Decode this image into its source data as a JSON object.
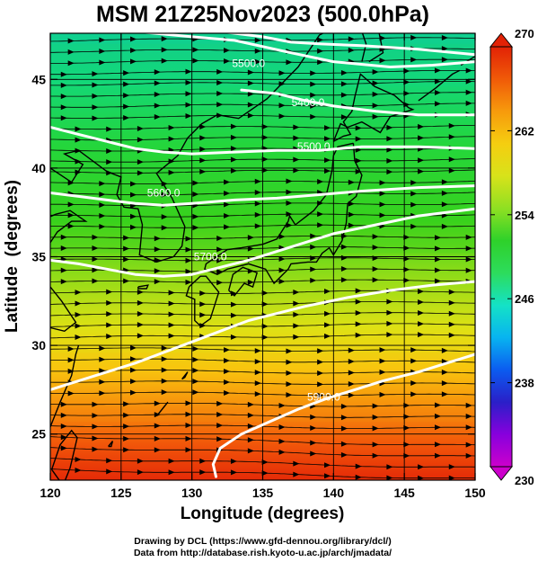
{
  "title": "MSM 21Z25Nov2023 (500.0hPa)",
  "map": {
    "xlabel": "Longitude (degrees)",
    "ylabel": "Latitude  (degrees)",
    "lon_range": [
      120,
      150
    ],
    "lat_range": [
      22.4,
      47.6
    ],
    "x_ticks": [
      120,
      125,
      130,
      135,
      140,
      145,
      150
    ],
    "y_ticks": [
      25,
      30,
      35,
      40,
      45
    ],
    "grid": true,
    "contour_labels": [
      {
        "text": "5500.0",
        "lon": 134.0,
        "lat": 45.7
      },
      {
        "text": "5400.0",
        "lon": 138.2,
        "lat": 43.5
      },
      {
        "text": "5500.0",
        "lon": 138.6,
        "lat": 41.0
      },
      {
        "text": "5600.0",
        "lon": 128.0,
        "lat": 38.4
      },
      {
        "text": "5700.0",
        "lon": 131.3,
        "lat": 34.8
      },
      {
        "text": "5900.0",
        "lon": 139.3,
        "lat": 26.9
      }
    ],
    "contours": [
      [
        [
          122.0,
          47.9
        ],
        [
          126.0,
          47.7
        ],
        [
          130.0,
          47.4
        ],
        [
          133.0,
          47.2
        ],
        [
          137.0,
          46.5
        ],
        [
          140.0,
          46.0
        ],
        [
          144.0,
          45.7
        ],
        [
          147.0,
          45.8
        ],
        [
          150.0,
          46.0
        ]
      ],
      [
        [
          130.0,
          47.9
        ],
        [
          133.0,
          47.6
        ],
        [
          135.0,
          47.4
        ],
        [
          137.0,
          47.1
        ],
        [
          139.0,
          47.0
        ],
        [
          142.0,
          46.9
        ],
        [
          146.0,
          46.7
        ],
        [
          150.0,
          46.4
        ]
      ],
      [
        [
          133.5,
          44.4
        ],
        [
          136.0,
          44.2
        ],
        [
          138.0,
          43.8
        ],
        [
          140.0,
          43.5
        ],
        [
          143.0,
          43.2
        ],
        [
          146.0,
          43.0
        ],
        [
          150.0,
          43.0
        ]
      ],
      [
        [
          120.0,
          42.3
        ],
        [
          122.0,
          41.9
        ],
        [
          124.0,
          41.5
        ],
        [
          126.0,
          41.1
        ],
        [
          128.0,
          40.9
        ],
        [
          130.0,
          40.8
        ],
        [
          133.0,
          40.9
        ],
        [
          136.0,
          41.0
        ],
        [
          139.0,
          41.0
        ],
        [
          142.0,
          41.2
        ],
        [
          146.0,
          41.2
        ],
        [
          150.0,
          41.1
        ]
      ],
      [
        [
          120.0,
          38.6
        ],
        [
          122.0,
          38.4
        ],
        [
          124.0,
          38.2
        ],
        [
          126.0,
          38.0
        ],
        [
          128.0,
          37.9
        ],
        [
          130.0,
          38.0
        ],
        [
          133.0,
          38.2
        ],
        [
          136.0,
          38.3
        ],
        [
          139.0,
          38.5
        ],
        [
          142.0,
          38.7
        ],
        [
          146.0,
          38.9
        ],
        [
          150.0,
          39.0
        ]
      ],
      [
        [
          120.0,
          34.8
        ],
        [
          122.0,
          34.6
        ],
        [
          124.0,
          34.3
        ],
        [
          126.0,
          34.0
        ],
        [
          128.0,
          33.9
        ],
        [
          130.0,
          34.0
        ],
        [
          132.0,
          34.4
        ],
        [
          134.0,
          34.8
        ],
        [
          136.0,
          35.3
        ],
        [
          138.0,
          35.8
        ],
        [
          140.0,
          36.3
        ],
        [
          143.0,
          36.8
        ],
        [
          146.0,
          37.3
        ],
        [
          150.0,
          37.7
        ]
      ],
      [
        [
          120.0,
          27.5
        ],
        [
          122.0,
          28.0
        ],
        [
          124.0,
          28.5
        ],
        [
          126.0,
          29.0
        ],
        [
          128.0,
          29.6
        ],
        [
          130.0,
          30.2
        ],
        [
          132.0,
          30.8
        ],
        [
          134.0,
          31.4
        ],
        [
          136.0,
          31.8
        ],
        [
          138.0,
          32.2
        ],
        [
          141.0,
          32.7
        ],
        [
          144.0,
          33.1
        ],
        [
          147.0,
          33.4
        ],
        [
          150.0,
          33.6
        ]
      ],
      [
        [
          131.7,
          22.6
        ],
        [
          131.5,
          23.3
        ],
        [
          132.0,
          24.2
        ],
        [
          133.5,
          25.0
        ],
        [
          135.5,
          25.7
        ],
        [
          137.5,
          26.4
        ],
        [
          139.5,
          27.0
        ],
        [
          141.5,
          27.5
        ],
        [
          143.5,
          28.0
        ],
        [
          146.0,
          28.5
        ],
        [
          148.0,
          29.0
        ],
        [
          150.0,
          29.5
        ]
      ]
    ]
  },
  "colorbar": {
    "min": 230,
    "max": 270,
    "ticks": [
      270,
      262,
      254,
      246,
      238,
      230
    ],
    "colors": [
      "#cc00cc",
      "#8800dd",
      "#2a1fc8",
      "#0b5cf0",
      "#08b4f0",
      "#14e2c6",
      "#2ddc5c",
      "#2ed12a",
      "#8fe022",
      "#d8e21a",
      "#f5ce10",
      "#f79a0c",
      "#f05a08",
      "#e22206"
    ]
  },
  "credit": {
    "line1": "Drawing by DCL (https://www.gfd-dennou.org/library/dcl/)",
    "line2": "Data from http://database.rish.kyoto-u.ac.jp/arch/jmadata/"
  }
}
